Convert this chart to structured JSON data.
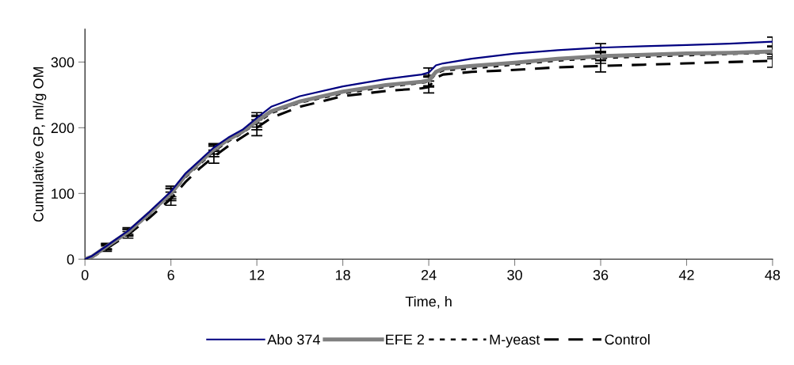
{
  "chart_data": {
    "type": "line",
    "xlabel": "Time, h",
    "ylabel": "Cumulative GP, ml/g OM",
    "xlim": [
      0,
      48
    ],
    "xticks": [
      0,
      6,
      12,
      18,
      24,
      30,
      36,
      42,
      48
    ],
    "ylim": [
      0,
      350
    ],
    "yticks": [
      0,
      100,
      200,
      300
    ],
    "grid": false,
    "legend": "bottom",
    "series": [
      {
        "name": "Abo 374",
        "color": "#000080",
        "line_style": "solid",
        "x": [
          0,
          0.5,
          1.5,
          3,
          4.5,
          6,
          7,
          8,
          9,
          10,
          11,
          12,
          13,
          15,
          18,
          21,
          23.5,
          24,
          24.5,
          25,
          27,
          30,
          33,
          36,
          39,
          42,
          45,
          48
        ],
        "values": [
          0,
          5,
          20,
          43,
          72,
          103,
          130,
          150,
          170,
          185,
          197,
          215,
          232,
          248,
          263,
          274,
          281,
          284,
          295,
          298,
          305,
          313,
          318,
          322,
          324,
          326,
          328,
          331
        ],
        "errors": [
          null,
          null,
          4,
          5,
          null,
          8,
          null,
          null,
          6,
          null,
          null,
          8,
          null,
          null,
          null,
          null,
          null,
          7,
          null,
          null,
          null,
          null,
          null,
          6,
          null,
          null,
          null,
          7
        ]
      },
      {
        "name": "EFE 2",
        "color": "#808080",
        "line_style": "solid",
        "x": [
          0,
          0.5,
          1.5,
          3,
          4.5,
          6,
          7,
          8,
          9,
          10,
          11,
          12,
          13,
          15,
          18,
          21,
          23.5,
          24,
          24.5,
          25,
          27,
          30,
          33,
          36,
          39,
          42,
          45,
          48
        ],
        "values": [
          0,
          4,
          19,
          41,
          70,
          100,
          127,
          147,
          167,
          182,
          194,
          210,
          225,
          240,
          255,
          265,
          270,
          272,
          285,
          290,
          294,
          299,
          305,
          309,
          311,
          313,
          314,
          316
        ],
        "errors": [
          null,
          null,
          4,
          5,
          null,
          8,
          null,
          null,
          7,
          null,
          null,
          9,
          null,
          null,
          null,
          null,
          null,
          8,
          null,
          null,
          null,
          null,
          null,
          7,
          null,
          null,
          null,
          8
        ]
      },
      {
        "name": "M-yeast",
        "color": "#000000",
        "line_style": "dotted",
        "x": [
          0,
          0.5,
          1.5,
          3,
          4.5,
          6,
          7,
          8,
          9,
          10,
          11,
          12,
          13,
          15,
          18,
          21,
          23.5,
          24,
          24.5,
          25,
          27,
          30,
          33,
          36,
          39,
          42,
          45,
          48
        ],
        "values": [
          0,
          4,
          18,
          40,
          68,
          98,
          124,
          144,
          164,
          179,
          192,
          207,
          222,
          238,
          252,
          262,
          268,
          270,
          282,
          287,
          290,
          296,
          302,
          306,
          308,
          310,
          312,
          314
        ],
        "errors": [
          null,
          null,
          4,
          5,
          null,
          9,
          null,
          null,
          8,
          null,
          null,
          10,
          null,
          null,
          null,
          null,
          null,
          8,
          null,
          null,
          null,
          null,
          null,
          8,
          null,
          null,
          null,
          9
        ]
      },
      {
        "name": "Control",
        "color": "#000000",
        "line_style": "dashed",
        "x": [
          0,
          0.5,
          1.5,
          3,
          4.5,
          6,
          7,
          8,
          9,
          10,
          11,
          12,
          13,
          15,
          18,
          21,
          23.5,
          24,
          24.5,
          25,
          27,
          30,
          33,
          36,
          39,
          42,
          45,
          48
        ],
        "values": [
          0,
          3,
          16,
          37,
          63,
          92,
          117,
          138,
          156,
          172,
          186,
          200,
          215,
          232,
          248,
          256,
          260,
          262,
          276,
          281,
          285,
          288,
          292,
          294,
          296,
          298,
          300,
          302
        ],
        "errors": [
          null,
          null,
          4,
          5,
          null,
          10,
          null,
          null,
          10,
          null,
          null,
          12,
          null,
          null,
          null,
          null,
          null,
          9,
          null,
          null,
          null,
          null,
          null,
          9,
          null,
          null,
          null,
          10
        ]
      }
    ]
  }
}
